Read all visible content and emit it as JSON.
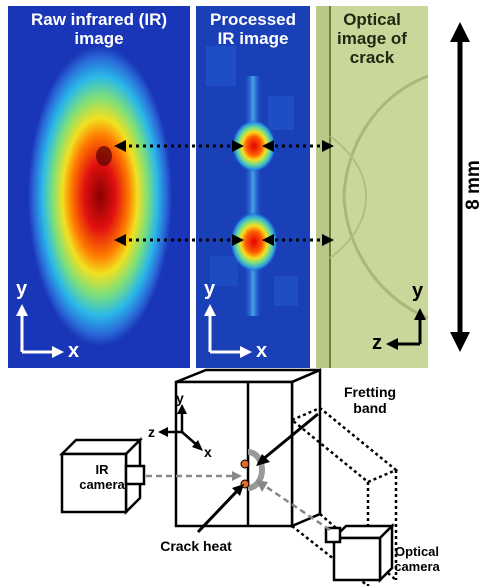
{
  "panels": {
    "raw_title": "Raw infrared (IR)\nimage",
    "processed_title": "Processed\nIR image",
    "optical_title": "Optical\nimage of\ncrack"
  },
  "axes": {
    "raw": {
      "y": "y",
      "x": "x"
    },
    "processed": {
      "y": "y",
      "x": "x"
    },
    "optical": {
      "y": "y",
      "z": "z"
    }
  },
  "scale": {
    "label": "8 mm"
  },
  "schematic": {
    "ir_camera": "IR\ncamera",
    "optical_camera": "Optical\ncamera",
    "fretting_band": "Fretting\nband",
    "crack_heat": "Crack heat",
    "axis_y": "y",
    "axis_z": "z",
    "axis_x": "x"
  },
  "colors": {
    "ir_background": "#1a36b8",
    "hot_core": "#9a0000",
    "optical_fill": "#c9d79a",
    "heat_marker": "#e06a2a"
  }
}
